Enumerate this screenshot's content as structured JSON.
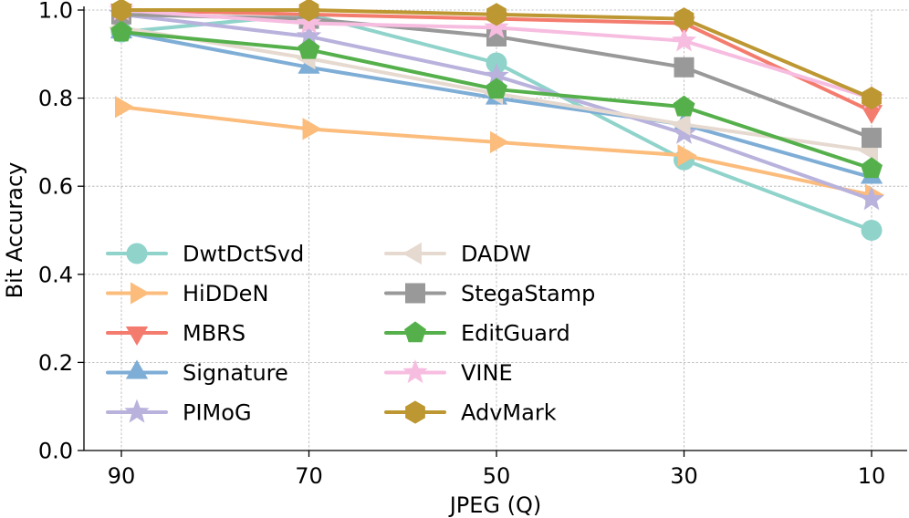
{
  "chart_data": {
    "type": "line",
    "title": "",
    "xlabel": "JPEG (Q)",
    "ylabel": "Bit Accuracy",
    "categories": [
      "90",
      "70",
      "50",
      "30",
      "10"
    ],
    "ylim": [
      0.0,
      1.0
    ],
    "yticks": [
      "0.0",
      "0.2",
      "0.4",
      "0.6",
      "0.8",
      "1.0"
    ],
    "grid": true,
    "legend": {
      "placement": "lower-left",
      "columns": 2
    },
    "series": [
      {
        "name": "DwtDctSvd",
        "color": "#8fd3cb",
        "marker": "circle",
        "values": [
          0.95,
          0.99,
          0.88,
          0.66,
          0.5
        ]
      },
      {
        "name": "HiDDeN",
        "color": "#fbbc7c",
        "marker": "triangle-right",
        "values": [
          0.78,
          0.73,
          0.7,
          0.67,
          0.58
        ]
      },
      {
        "name": "MBRS",
        "color": "#f47c6e",
        "marker": "triangle-down",
        "values": [
          1.0,
          0.99,
          0.98,
          0.97,
          0.77
        ]
      },
      {
        "name": "Signature",
        "color": "#7eadd6",
        "marker": "triangle-up",
        "values": [
          0.95,
          0.87,
          0.8,
          0.74,
          0.62
        ]
      },
      {
        "name": "PIMoG",
        "color": "#b8b2dc",
        "marker": "star",
        "values": [
          0.99,
          0.94,
          0.85,
          0.72,
          0.57
        ]
      },
      {
        "name": "DADW",
        "color": "#e6dad0",
        "marker": "triangle-left",
        "values": [
          0.96,
          0.89,
          0.81,
          0.74,
          0.68
        ]
      },
      {
        "name": "StegaStamp",
        "color": "#999999",
        "marker": "square",
        "values": [
          0.99,
          0.98,
          0.94,
          0.87,
          0.71
        ]
      },
      {
        "name": "EditGuard",
        "color": "#55b04b",
        "marker": "pentagon",
        "values": [
          0.95,
          0.91,
          0.82,
          0.78,
          0.64
        ]
      },
      {
        "name": "VINE",
        "color": "#f7bde0",
        "marker": "star",
        "values": [
          1.0,
          0.97,
          0.96,
          0.93,
          0.8
        ]
      },
      {
        "name": "AdvMark",
        "color": "#bd9731",
        "marker": "hexagon",
        "values": [
          1.0,
          1.0,
          0.99,
          0.98,
          0.8
        ]
      }
    ]
  }
}
